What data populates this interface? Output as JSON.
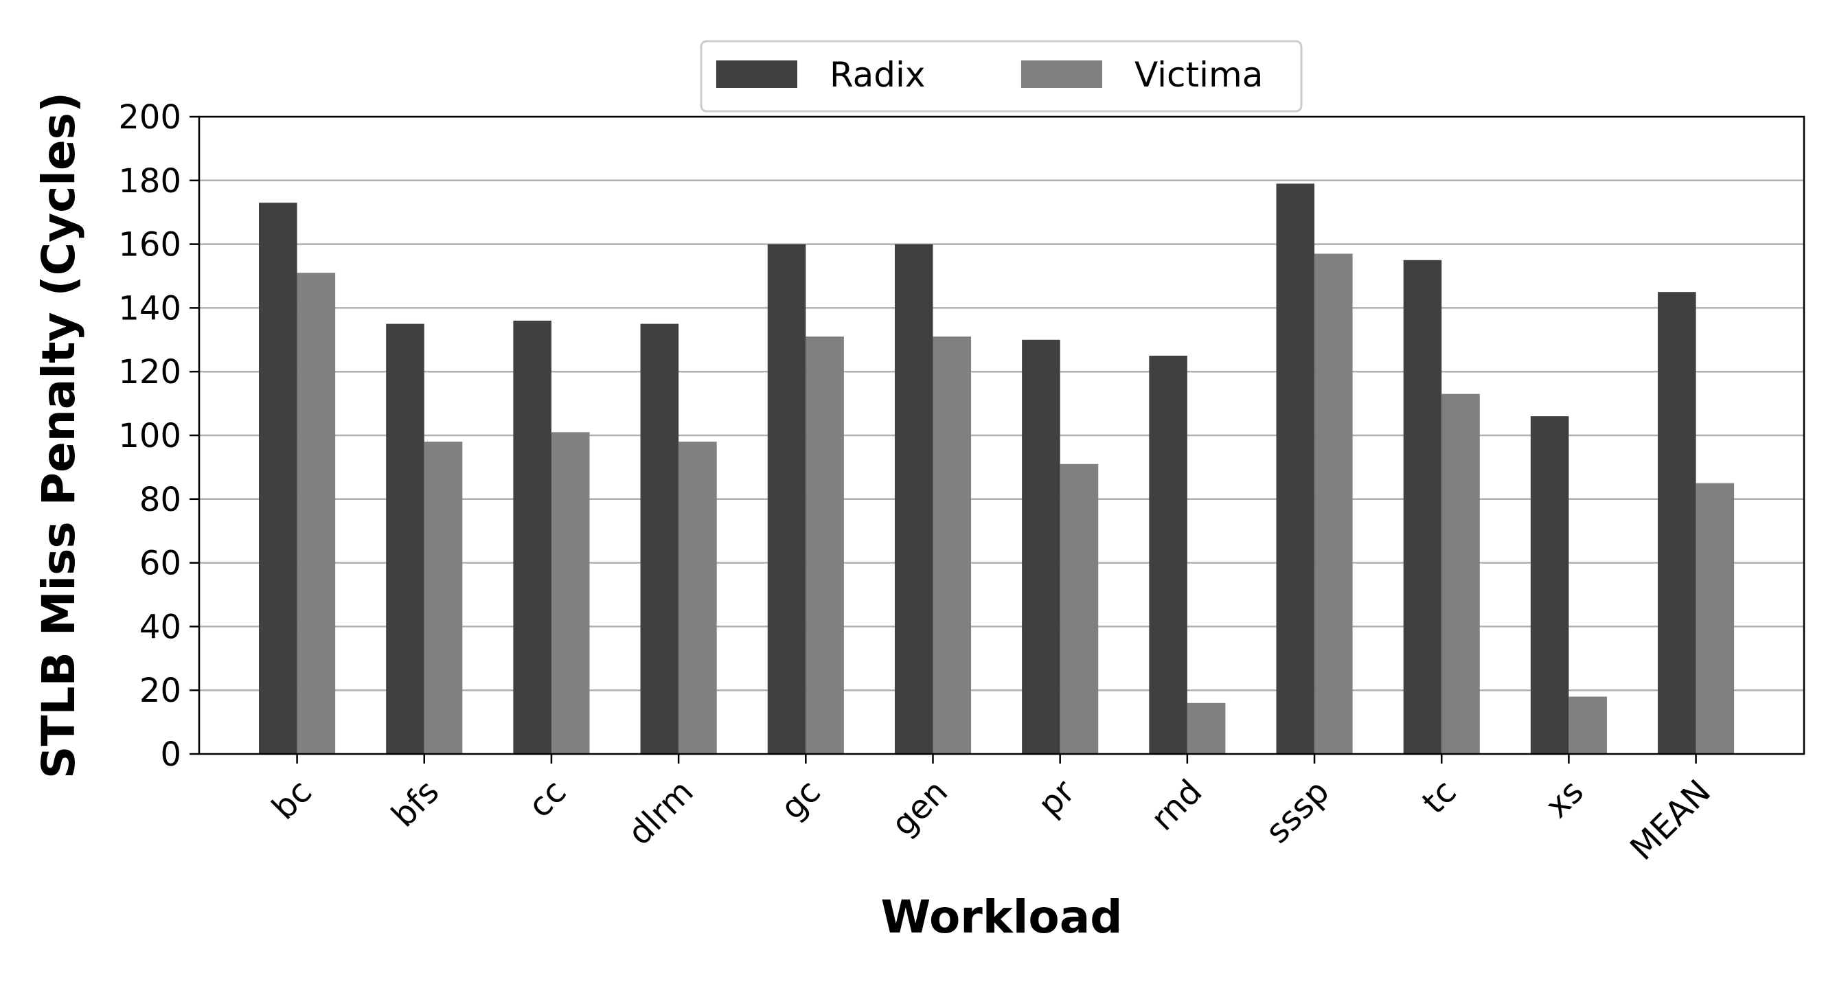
{
  "chart_data": {
    "type": "bar",
    "categories": [
      "bc",
      "bfs",
      "cc",
      "dlrm",
      "gc",
      "gen",
      "pr",
      "rnd",
      "sssp",
      "tc",
      "xs",
      "MEAN"
    ],
    "series": [
      {
        "name": "Radix",
        "color": "#404040",
        "values": [
          173,
          135,
          136,
          135,
          160,
          160,
          130,
          125,
          179,
          155,
          106,
          145
        ]
      },
      {
        "name": "Victima",
        "color": "#808080",
        "values": [
          151,
          98,
          101,
          98,
          131,
          131,
          91,
          16,
          157,
          113,
          18,
          85
        ]
      }
    ],
    "xlabel": "Workload",
    "ylabel": "STLB Miss Penalty (Cycles)",
    "ylim": [
      0,
      200
    ],
    "yticks": [
      0,
      20,
      40,
      60,
      80,
      100,
      120,
      140,
      160,
      180,
      200
    ],
    "grid": "horizontal",
    "legend": {
      "placement": "top-center",
      "columns": 2
    }
  }
}
